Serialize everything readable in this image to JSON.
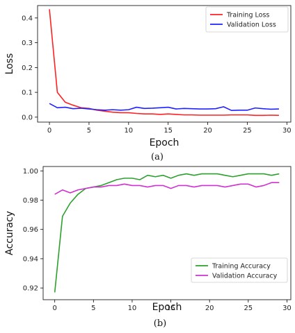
{
  "chart_data": [
    {
      "type": "line",
      "caption": "(a)",
      "xlabel": "Epoch",
      "ylabel": "Loss",
      "xlim": [
        -1.5,
        30.5
      ],
      "ylim": [
        -0.02,
        0.45
      ],
      "xticks": [
        0,
        5,
        10,
        15,
        20,
        25,
        30
      ],
      "yticks": [
        0.0,
        0.1,
        0.2,
        0.3,
        0.4
      ],
      "ytick_labels": [
        "0.0",
        "0.1",
        "0.2",
        "0.3",
        "0.4"
      ],
      "grid": false,
      "legend_position": "top-right",
      "x": [
        0,
        1,
        2,
        3,
        4,
        5,
        6,
        7,
        8,
        9,
        10,
        11,
        12,
        13,
        14,
        15,
        16,
        17,
        18,
        19,
        20,
        21,
        22,
        23,
        24,
        25,
        26,
        27,
        28,
        29
      ],
      "series": [
        {
          "name": "Training Loss",
          "color": "#ff2020",
          "values": [
            0.435,
            0.1,
            0.06,
            0.048,
            0.038,
            0.035,
            0.028,
            0.024,
            0.02,
            0.018,
            0.018,
            0.015,
            0.013,
            0.013,
            0.011,
            0.013,
            0.011,
            0.009,
            0.009,
            0.008,
            0.008,
            0.008,
            0.008,
            0.009,
            0.009,
            0.009,
            0.007,
            0.007,
            0.008,
            0.007
          ]
        },
        {
          "name": "Validation Loss",
          "color": "#2020ff",
          "values": [
            0.055,
            0.038,
            0.04,
            0.034,
            0.036,
            0.033,
            0.03,
            0.028,
            0.03,
            0.028,
            0.03,
            0.04,
            0.035,
            0.036,
            0.038,
            0.04,
            0.033,
            0.035,
            0.034,
            0.033,
            0.033,
            0.034,
            0.042,
            0.027,
            0.028,
            0.028,
            0.037,
            0.034,
            0.032,
            0.033
          ]
        }
      ]
    },
    {
      "type": "line",
      "caption": "(b)",
      "xlabel": "Epoch",
      "ylabel": "Accuracy",
      "xlim": [
        -1.5,
        30.5
      ],
      "ylim": [
        0.912,
        1.003
      ],
      "xticks": [
        0,
        5,
        10,
        15,
        20,
        25,
        30
      ],
      "yticks": [
        0.92,
        0.94,
        0.96,
        0.98,
        1.0
      ],
      "ytick_labels": [
        "0.92",
        "0.94",
        "0.96",
        "0.98",
        "1.00"
      ],
      "grid": false,
      "legend_position": "bottom-right",
      "x": [
        0,
        1,
        2,
        3,
        4,
        5,
        6,
        7,
        8,
        9,
        10,
        11,
        12,
        13,
        14,
        15,
        16,
        17,
        18,
        19,
        20,
        21,
        22,
        23,
        24,
        25,
        26,
        27,
        28,
        29
      ],
      "series": [
        {
          "name": "Training Accuracy",
          "color": "#2ca02c",
          "values": [
            0.917,
            0.969,
            0.978,
            0.984,
            0.988,
            0.989,
            0.99,
            0.992,
            0.994,
            0.995,
            0.995,
            0.994,
            0.997,
            0.996,
            0.997,
            0.995,
            0.997,
            0.998,
            0.997,
            0.998,
            0.998,
            0.998,
            0.997,
            0.996,
            0.997,
            0.998,
            0.998,
            0.998,
            0.997,
            0.998
          ]
        },
        {
          "name": "Validation Accuracy",
          "color": "#d030d0",
          "values": [
            0.984,
            0.987,
            0.985,
            0.987,
            0.988,
            0.989,
            0.989,
            0.99,
            0.99,
            0.991,
            0.99,
            0.99,
            0.989,
            0.99,
            0.99,
            0.988,
            0.99,
            0.99,
            0.989,
            0.99,
            0.99,
            0.99,
            0.989,
            0.99,
            0.991,
            0.991,
            0.989,
            0.99,
            0.992,
            0.992
          ]
        }
      ]
    }
  ]
}
